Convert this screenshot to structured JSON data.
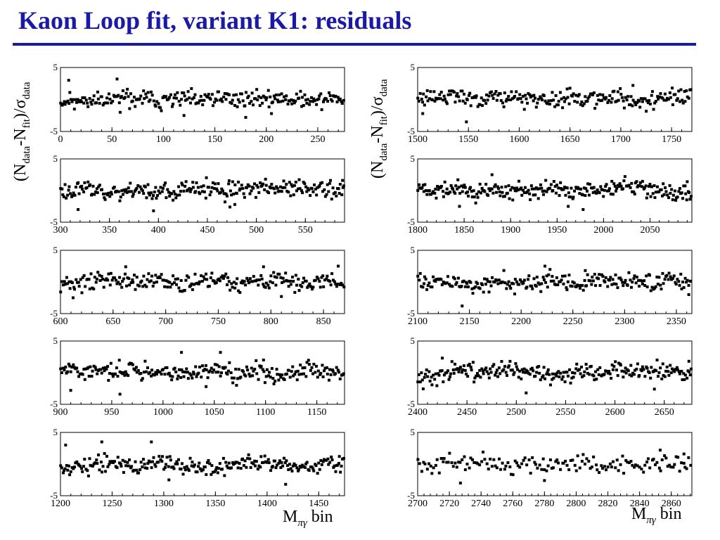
{
  "slide": {
    "title": "Kaon Loop fit, variant K1: residuals"
  },
  "axis_titles": {
    "y_main": "(N",
    "y_sub1": "data",
    "y_mid": "-N",
    "y_sub2": "fit",
    "y_slash": ")/σ",
    "y_sub3": "data",
    "x_main": "M",
    "x_sub": "πγ",
    "x_tail": " bin"
  },
  "chart_data": [
    {
      "type": "scatter",
      "column": "left",
      "ylim": [
        -5,
        5
      ],
      "yticks": [
        "5",
        "-5"
      ],
      "xlim": [
        0,
        276
      ],
      "xticks": [
        0,
        50,
        100,
        150,
        200,
        250
      ],
      "seed": 11,
      "features": [
        {
          "x": 8,
          "y": 3.0
        },
        {
          "x": 55,
          "y": 3.2
        },
        {
          "x": 58,
          "y": -2.0
        },
        {
          "x": 120,
          "y": -2.5
        },
        {
          "x": 180,
          "y": -2.8
        },
        {
          "x": 205,
          "y": -2.2
        }
      ]
    },
    {
      "type": "scatter",
      "column": "left",
      "ylim": [
        -5,
        5
      ],
      "yticks": [
        "5",
        "-5"
      ],
      "xlim": [
        300,
        590
      ],
      "xticks": [
        300,
        350,
        400,
        450,
        500,
        550
      ],
      "seed": 23,
      "features": [
        {
          "x": 318,
          "y": -3.0
        },
        {
          "x": 395,
          "y": -3.2
        },
        {
          "x": 468,
          "y": -1.8
        },
        {
          "x": 473,
          "y": -2.6
        },
        {
          "x": 478,
          "y": -2.2
        },
        {
          "x": 588,
          "y": 1.6
        }
      ]
    },
    {
      "type": "scatter",
      "column": "left",
      "ylim": [
        -5,
        5
      ],
      "yticks": [
        "5",
        "-5"
      ],
      "xlim": [
        600,
        870
      ],
      "xticks": [
        600,
        650,
        700,
        750,
        800,
        850
      ],
      "seed": 37,
      "features": [
        {
          "x": 612,
          "y": -2.5
        },
        {
          "x": 662,
          "y": 2.4
        },
        {
          "x": 793,
          "y": 2.4
        },
        {
          "x": 810,
          "y": -2.3
        },
        {
          "x": 864,
          "y": 2.5
        }
      ]
    },
    {
      "type": "scatter",
      "column": "left",
      "ylim": [
        -5,
        5
      ],
      "yticks": [
        "5",
        "-5"
      ],
      "xlim": [
        900,
        1177
      ],
      "xticks": [
        900,
        950,
        1000,
        1050,
        1100,
        1150
      ],
      "seed": 41,
      "features": [
        {
          "x": 910,
          "y": -2.8
        },
        {
          "x": 958,
          "y": -3.4
        },
        {
          "x": 1018,
          "y": 3.2
        },
        {
          "x": 1042,
          "y": -2.2
        },
        {
          "x": 1056,
          "y": 3.2
        },
        {
          "x": 1098,
          "y": 2.0
        }
      ]
    },
    {
      "type": "scatter",
      "column": "left",
      "ylim": [
        -5,
        5
      ],
      "yticks": [
        "5",
        "-5"
      ],
      "xlim": [
        1200,
        1475
      ],
      "xticks": [
        1200,
        1250,
        1300,
        1350,
        1400,
        1450
      ],
      "seed": 53,
      "features": [
        {
          "x": 1205,
          "y": 3.0
        },
        {
          "x": 1240,
          "y": 3.5
        },
        {
          "x": 1288,
          "y": 3.5
        },
        {
          "x": 1305,
          "y": -2.5
        },
        {
          "x": 1418,
          "y": -3.2
        },
        {
          "x": 1470,
          "y": 1.2
        }
      ]
    },
    {
      "type": "scatter",
      "column": "right",
      "ylim": [
        -5,
        5
      ],
      "yticks": [
        "5",
        "-5"
      ],
      "xlim": [
        1500,
        1770
      ],
      "xticks": [
        1500,
        1550,
        1600,
        1650,
        1700,
        1750
      ],
      "seed": 61,
      "features": [
        {
          "x": 1548,
          "y": -3.5
        },
        {
          "x": 1505,
          "y": -2.2
        },
        {
          "x": 1712,
          "y": 2.2
        }
      ]
    },
    {
      "type": "scatter",
      "column": "right",
      "ylim": [
        -5,
        5
      ],
      "yticks": [
        "5",
        "-5"
      ],
      "xlim": [
        1800,
        2095
      ],
      "xticks": [
        1800,
        1850,
        1900,
        1950,
        2000,
        2050
      ],
      "seed": 71,
      "features": [
        {
          "x": 1880,
          "y": 2.5
        },
        {
          "x": 1845,
          "y": -2.5
        },
        {
          "x": 1962,
          "y": -2.5
        },
        {
          "x": 1978,
          "y": -3.0
        },
        {
          "x": 2090,
          "y": 1.4
        }
      ]
    },
    {
      "type": "scatter",
      "column": "right",
      "ylim": [
        -5,
        5
      ],
      "yticks": [
        "5",
        "-5"
      ],
      "xlim": [
        2100,
        2365
      ],
      "xticks": [
        2100,
        2150,
        2200,
        2250,
        2300,
        2350
      ],
      "seed": 83,
      "features": [
        {
          "x": 2143,
          "y": -3.8
        },
        {
          "x": 2223,
          "y": 2.5
        },
        {
          "x": 2262,
          "y": 1.8
        },
        {
          "x": 2362,
          "y": -2.0
        }
      ]
    },
    {
      "type": "scatter",
      "column": "right",
      "ylim": [
        -5,
        5
      ],
      "yticks": [
        "5",
        "-5"
      ],
      "xlim": [
        2400,
        2678
      ],
      "xticks": [
        2400,
        2450,
        2500,
        2550,
        2600,
        2650
      ],
      "seed": 97,
      "features": [
        {
          "x": 2425,
          "y": 2.3
        },
        {
          "x": 2510,
          "y": -3.2
        },
        {
          "x": 2640,
          "y": -2.6
        },
        {
          "x": 2675,
          "y": 1.8
        }
      ]
    },
    {
      "type": "scatter",
      "column": "right",
      "ylim": [
        -5,
        5
      ],
      "yticks": [
        "5",
        "-5"
      ],
      "xlim": [
        2700,
        2873
      ],
      "xticks": [
        2700,
        2720,
        2740,
        2760,
        2780,
        2800,
        2820,
        2840,
        2860
      ],
      "seed": 101,
      "features": [
        {
          "x": 2727,
          "y": -3.0
        },
        {
          "x": 2780,
          "y": -2.6
        },
        {
          "x": 2853,
          "y": 2.2
        },
        {
          "x": 2868,
          "y": 1.6
        }
      ]
    }
  ]
}
